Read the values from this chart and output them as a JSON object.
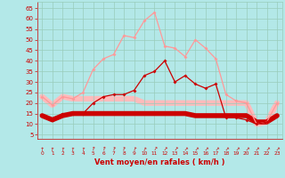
{
  "x": [
    0,
    1,
    2,
    3,
    4,
    5,
    6,
    7,
    8,
    9,
    10,
    11,
    12,
    13,
    14,
    15,
    16,
    17,
    18,
    19,
    20,
    21,
    22,
    23
  ],
  "line_avg_thick": [
    14,
    12,
    14,
    15,
    15,
    15,
    15,
    15,
    15,
    15,
    15,
    15,
    15,
    15,
    15,
    14,
    14,
    14,
    14,
    14,
    14,
    11,
    11,
    14
  ],
  "line_gust_thick": [
    23,
    19,
    23,
    22,
    22,
    22,
    22,
    22,
    22,
    22,
    20,
    20,
    20,
    20,
    20,
    20,
    20,
    20,
    20,
    20,
    20,
    10,
    11,
    20
  ],
  "line_avg": [
    14,
    12,
    15,
    15,
    15,
    20,
    23,
    24,
    24,
    26,
    33,
    35,
    40,
    30,
    33,
    29,
    27,
    29,
    13,
    13,
    12,
    10,
    11,
    14
  ],
  "line_gust": [
    23,
    19,
    23,
    22,
    25,
    36,
    41,
    43,
    52,
    51,
    59,
    63,
    47,
    46,
    42,
    50,
    46,
    41,
    24,
    21,
    20,
    10,
    11,
    20
  ],
  "color_dark": "#cc0000",
  "color_light": "#ff9999",
  "color_thick_avg": "#cc0000",
  "color_thick_gust": "#ffbbbb",
  "bg_color": "#b3e8e8",
  "grid_color": "#99ccbb",
  "text_color": "#cc0000",
  "xlabel": "Vent moyen/en rafales ( km/h )",
  "yticks": [
    5,
    10,
    15,
    20,
    25,
    30,
    35,
    40,
    45,
    50,
    55,
    60,
    65
  ],
  "ylim": [
    3,
    68
  ],
  "xlim": [
    -0.5,
    23.5
  ],
  "arrow_angles": [
    0,
    5,
    5,
    5,
    5,
    10,
    10,
    15,
    15,
    20,
    25,
    30,
    35,
    35,
    40,
    40,
    40,
    40,
    40,
    40,
    40,
    40,
    40,
    40
  ]
}
